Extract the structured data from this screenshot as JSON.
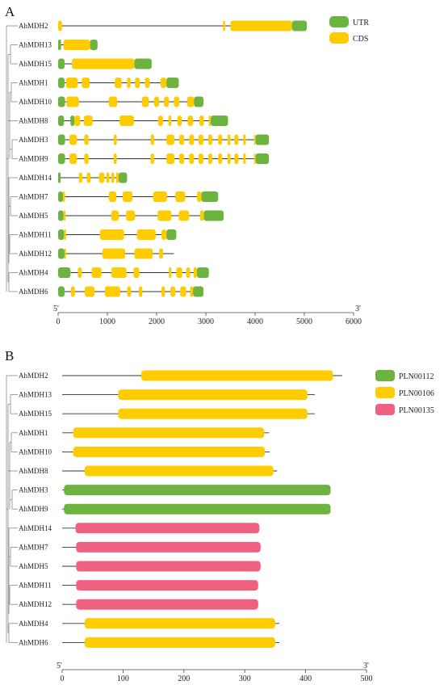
{
  "panel_a": {
    "letter": "A",
    "legend": [
      {
        "label": "UTR",
        "color": "#6db33f"
      },
      {
        "label": "CDS",
        "color": "#ffcc00"
      }
    ],
    "axis": {
      "ticks": [
        "0",
        "1000",
        "2000",
        "3000",
        "4000",
        "5000",
        "6000"
      ],
      "end5": "5'",
      "end3": "3'"
    }
  },
  "panel_b": {
    "letter": "B",
    "legend": [
      {
        "label": "PLN00112",
        "color": "#6db33f"
      },
      {
        "label": "PLN00106",
        "color": "#ffcc00"
      },
      {
        "label": "PLN00135",
        "color": "#f06080"
      }
    ],
    "axis": {
      "ticks": [
        "0",
        "100",
        "200",
        "300",
        "400",
        "500"
      ],
      "end5": "5'",
      "end3": "3'"
    }
  },
  "colors": {
    "utr": "#6db33f",
    "cds": "#ffcc00",
    "pln00112": "#6db33f",
    "pln00106": "#ffcc00",
    "pln00135": "#f06080"
  },
  "chart_data": [
    {
      "type": "gene-structure",
      "xlim": [
        0,
        6000
      ],
      "genes": [
        {
          "name": "AhMDH2",
          "length": 5050,
          "segments": [
            [
              "cds",
              0,
              80
            ],
            [
              "cds",
              3350,
              3390
            ],
            [
              "cds",
              3500,
              4750
            ],
            [
              "utr",
              4750,
              5050
            ]
          ]
        },
        {
          "name": "AhMDH13",
          "length": 800,
          "segments": [
            [
              "utr",
              0,
              60
            ],
            [
              "cds",
              110,
              650
            ],
            [
              "utr",
              650,
              800
            ]
          ]
        },
        {
          "name": "AhMDH15",
          "length": 1900,
          "segments": [
            [
              "utr",
              0,
              130
            ],
            [
              "cds",
              280,
              1550
            ],
            [
              "utr",
              1550,
              1900
            ]
          ]
        },
        {
          "name": "AhMDH1",
          "length": 2450,
          "segments": [
            [
              "utr",
              0,
              130
            ],
            [
              "cds",
              160,
              400
            ],
            [
              "cds",
              480,
              640
            ],
            [
              "cds",
              1150,
              1290
            ],
            [
              "cds",
              1400,
              1470
            ],
            [
              "cds",
              1560,
              1660
            ],
            [
              "cds",
              1760,
              1860
            ],
            [
              "cds",
              2080,
              2200
            ],
            [
              "utr",
              2200,
              2450
            ]
          ]
        },
        {
          "name": "AhMDH10",
          "length": 2950,
          "segments": [
            [
              "utr",
              0,
              140
            ],
            [
              "cds",
              170,
              420
            ],
            [
              "cds",
              1030,
              1200
            ],
            [
              "cds",
              1700,
              1840
            ],
            [
              "cds",
              1950,
              2050
            ],
            [
              "cds",
              2150,
              2250
            ],
            [
              "cds",
              2350,
              2460
            ],
            [
              "cds",
              2620,
              2760
            ],
            [
              "utr",
              2760,
              2950
            ]
          ]
        },
        {
          "name": "AhMDH8",
          "length": 3450,
          "segments": [
            [
              "utr",
              0,
              120
            ],
            [
              "utr",
              250,
              330
            ],
            [
              "cds",
              330,
              450
            ],
            [
              "cds",
              520,
              700
            ],
            [
              "cds",
              1250,
              1540
            ],
            [
              "cds",
              2030,
              2130
            ],
            [
              "cds",
              2240,
              2300
            ],
            [
              "cds",
              2420,
              2510
            ],
            [
              "cds",
              2630,
              2740
            ],
            [
              "cds",
              2870,
              2960
            ],
            [
              "cds",
              3060,
              3100
            ],
            [
              "utr",
              3100,
              3450
            ]
          ]
        },
        {
          "name": "AhMDH3",
          "length": 4280,
          "segments": [
            [
              "utr",
              0,
              140
            ],
            [
              "cds",
              230,
              380
            ],
            [
              "cds",
              530,
              620
            ],
            [
              "cds",
              1130,
              1190
            ],
            [
              "cds",
              1880,
              1950
            ],
            [
              "cds",
              2200,
              2360
            ],
            [
              "cds",
              2460,
              2560
            ],
            [
              "cds",
              2660,
              2760
            ],
            [
              "cds",
              2850,
              2950
            ],
            [
              "cds",
              3050,
              3130
            ],
            [
              "cds",
              3250,
              3330
            ],
            [
              "cds",
              3440,
              3500
            ],
            [
              "cds",
              3580,
              3660
            ],
            [
              "cds",
              3760,
              3810
            ],
            [
              "cds",
              3980,
              4010
            ],
            [
              "utr",
              4010,
              4280
            ]
          ]
        },
        {
          "name": "AhMDH9",
          "length": 4280,
          "segments": [
            [
              "utr",
              0,
              140
            ],
            [
              "cds",
              230,
              380
            ],
            [
              "cds",
              530,
              620
            ],
            [
              "cds",
              1130,
              1190
            ],
            [
              "cds",
              1880,
              1950
            ],
            [
              "cds",
              2200,
              2360
            ],
            [
              "cds",
              2460,
              2560
            ],
            [
              "cds",
              2660,
              2760
            ],
            [
              "cds",
              2850,
              2950
            ],
            [
              "cds",
              3050,
              3130
            ],
            [
              "cds",
              3250,
              3330
            ],
            [
              "cds",
              3440,
              3500
            ],
            [
              "cds",
              3580,
              3660
            ],
            [
              "cds",
              3760,
              3810
            ],
            [
              "cds",
              3980,
              4010
            ],
            [
              "utr",
              4010,
              4280
            ]
          ]
        },
        {
          "name": "AhMDH14",
          "length": 1400,
          "segments": [
            [
              "utr",
              0,
              50
            ],
            [
              "cds",
              420,
              490
            ],
            [
              "cds",
              580,
              660
            ],
            [
              "cds",
              830,
              940
            ],
            [
              "cds",
              980,
              1040
            ],
            [
              "cds",
              1080,
              1140
            ],
            [
              "cds",
              1180,
              1230
            ],
            [
              "utr",
              1230,
              1400
            ]
          ]
        },
        {
          "name": "AhMDH7",
          "length": 3250,
          "segments": [
            [
              "utr",
              0,
              100
            ],
            [
              "cds",
              100,
              140
            ],
            [
              "cds",
              1030,
              1180
            ],
            [
              "cds",
              1310,
              1510
            ],
            [
              "cds",
              1930,
              2210
            ],
            [
              "cds",
              2380,
              2580
            ],
            [
              "cds",
              2820,
              2910
            ],
            [
              "utr",
              2910,
              3250
            ]
          ]
        },
        {
          "name": "AhMDH5",
          "length": 3360,
          "segments": [
            [
              "utr",
              0,
              110
            ],
            [
              "cds",
              110,
              150
            ],
            [
              "cds",
              1080,
              1230
            ],
            [
              "cds",
              1380,
              1560
            ],
            [
              "cds",
              2020,
              2300
            ],
            [
              "cds",
              2450,
              2660
            ],
            [
              "cds",
              2880,
              2960
            ],
            [
              "utr",
              2960,
              3360
            ]
          ]
        },
        {
          "name": "AhMDH11",
          "length": 2400,
          "segments": [
            [
              "utr",
              0,
              120
            ],
            [
              "cds",
              120,
              160
            ],
            [
              "cds",
              850,
              1340
            ],
            [
              "cds",
              1600,
              1980
            ],
            [
              "cds",
              2100,
              2200
            ],
            [
              "utr",
              2200,
              2400
            ]
          ]
        },
        {
          "name": "AhMDH12",
          "length": 2350,
          "segments": [
            [
              "utr",
              0,
              130
            ],
            [
              "cds",
              130,
              160
            ],
            [
              "cds",
              900,
              1360
            ],
            [
              "cds",
              1550,
              1920
            ],
            [
              "cds",
              2050,
              2130
            ]
          ]
        },
        {
          "name": "AhMDH4",
          "length": 3060,
          "segments": [
            [
              "utr",
              0,
              250
            ],
            [
              "cds",
              400,
              480
            ],
            [
              "cds",
              680,
              880
            ],
            [
              "cds",
              1080,
              1390
            ],
            [
              "cds",
              1530,
              1650
            ],
            [
              "cds",
              2250,
              2300
            ],
            [
              "cds",
              2400,
              2520
            ],
            [
              "cds",
              2600,
              2680
            ],
            [
              "cds",
              2750,
              2820
            ],
            [
              "utr",
              2820,
              3060
            ]
          ]
        },
        {
          "name": "AhMDH6",
          "length": 2950,
          "segments": [
            [
              "utr",
              0,
              130
            ],
            [
              "cds",
              260,
              340
            ],
            [
              "cds",
              540,
              740
            ],
            [
              "cds",
              950,
              1260
            ],
            [
              "cds",
              1400,
              1480
            ],
            [
              "cds",
              1640,
              1710
            ],
            [
              "cds",
              2100,
              2170
            ],
            [
              "cds",
              2280,
              2380
            ],
            [
              "cds",
              2480,
              2600
            ],
            [
              "cds",
              2680,
              2740
            ],
            [
              "utr",
              2740,
              2950
            ]
          ]
        }
      ]
    },
    {
      "type": "protein-domains",
      "xlim": [
        0,
        500
      ],
      "proteins": [
        {
          "name": "AhMDH2",
          "length": 460,
          "domain": "PLN00106",
          "start": 130,
          "end": 445
        },
        {
          "name": "AhMDH13",
          "length": 415,
          "domain": "PLN00106",
          "start": 92,
          "end": 403
        },
        {
          "name": "AhMDH15",
          "length": 415,
          "domain": "PLN00106",
          "start": 92,
          "end": 403
        },
        {
          "name": "AhMDH1",
          "length": 340,
          "domain": "PLN00106",
          "start": 18,
          "end": 332
        },
        {
          "name": "AhMDH10",
          "length": 341,
          "domain": "PLN00106",
          "start": 18,
          "end": 333
        },
        {
          "name": "AhMDH8",
          "length": 353,
          "domain": "PLN00106",
          "start": 37,
          "end": 347
        },
        {
          "name": "AhMDH3",
          "length": 441,
          "domain": "PLN00112",
          "start": 3,
          "end": 441
        },
        {
          "name": "AhMDH9",
          "length": 441,
          "domain": "PLN00112",
          "start": 3,
          "end": 441
        },
        {
          "name": "AhMDH14",
          "length": 324,
          "domain": "PLN00135",
          "start": 22,
          "end": 324
        },
        {
          "name": "AhMDH7",
          "length": 326,
          "domain": "PLN00135",
          "start": 23,
          "end": 326
        },
        {
          "name": "AhMDH5",
          "length": 326,
          "domain": "PLN00135",
          "start": 23,
          "end": 326
        },
        {
          "name": "AhMDH11",
          "length": 322,
          "domain": "PLN00135",
          "start": 23,
          "end": 322
        },
        {
          "name": "AhMDH12",
          "length": 322,
          "domain": "PLN00135",
          "start": 23,
          "end": 322
        },
        {
          "name": "AhMDH4",
          "length": 357,
          "domain": "PLN00106",
          "start": 37,
          "end": 350
        },
        {
          "name": "AhMDH6",
          "length": 357,
          "domain": "PLN00106",
          "start": 37,
          "end": 350
        }
      ]
    }
  ]
}
